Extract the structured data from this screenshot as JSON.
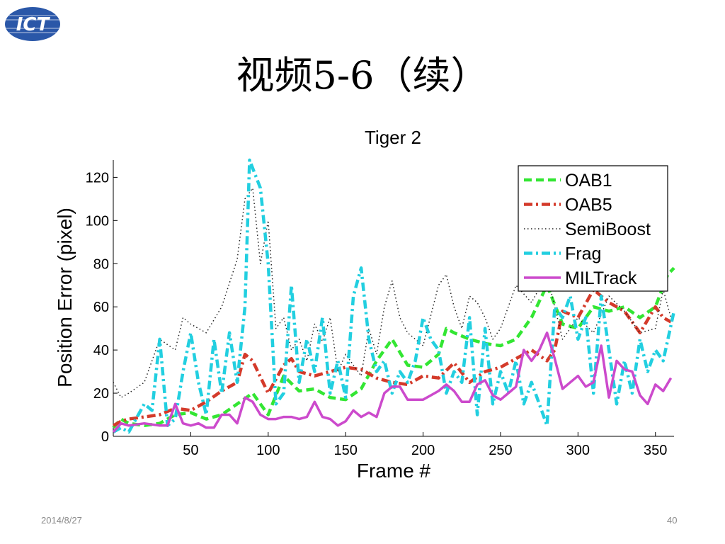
{
  "slide": {
    "title": "视频5-6（续）",
    "logo_text": "ICT",
    "footer_date": "2014/8/27",
    "page_number": "40"
  },
  "chart_data": {
    "type": "line",
    "title": "Tiger 2",
    "xlabel": "Frame #",
    "ylabel": "Position Error (pixel)",
    "xlim": [
      0,
      362
    ],
    "ylim": [
      0,
      128
    ],
    "xticks": [
      50,
      100,
      150,
      200,
      250,
      300,
      350
    ],
    "yticks": [
      0,
      20,
      40,
      60,
      80,
      100,
      120
    ],
    "grid": false,
    "legend_position": "top-right",
    "series": [
      {
        "name": "OAB1",
        "color": "#33e633",
        "style": "dashed",
        "x": [
          0,
          5,
          10,
          20,
          30,
          40,
          50,
          60,
          70,
          80,
          90,
          95,
          100,
          110,
          120,
          130,
          140,
          150,
          160,
          170,
          180,
          190,
          200,
          210,
          215,
          220,
          230,
          240,
          250,
          260,
          270,
          280,
          290,
          300,
          310,
          320,
          330,
          340,
          350,
          358,
          362
        ],
        "y": [
          4,
          8,
          6,
          5,
          6,
          10,
          11,
          8,
          10,
          15,
          20,
          15,
          10,
          28,
          21,
          22,
          18,
          17,
          22,
          35,
          45,
          33,
          32,
          38,
          50,
          48,
          45,
          43,
          42,
          45,
          55,
          70,
          52,
          50,
          60,
          58,
          60,
          55,
          60,
          75,
          78
        ]
      },
      {
        "name": "OAB5",
        "color": "#d43a2a",
        "style": "dashdot",
        "x": [
          0,
          5,
          10,
          20,
          30,
          40,
          50,
          60,
          70,
          80,
          85,
          90,
          100,
          110,
          115,
          120,
          130,
          140,
          150,
          160,
          170,
          180,
          190,
          200,
          210,
          220,
          230,
          240,
          250,
          260,
          270,
          280,
          285,
          290,
          300,
          310,
          320,
          330,
          340,
          350,
          355,
          360
        ],
        "y": [
          5,
          7,
          8,
          9,
          10,
          13,
          12,
          16,
          21,
          25,
          38,
          35,
          20,
          33,
          36,
          30,
          28,
          30,
          32,
          31,
          27,
          25,
          24,
          28,
          27,
          34,
          25,
          30,
          32,
          36,
          40,
          35,
          40,
          58,
          55,
          68,
          62,
          58,
          48,
          60,
          55,
          53
        ]
      },
      {
        "name": "SemiBoost",
        "color": "#222222",
        "style": "dotted",
        "x": [
          0,
          5,
          10,
          20,
          30,
          40,
          45,
          50,
          60,
          70,
          80,
          85,
          90,
          95,
          100,
          105,
          110,
          115,
          120,
          125,
          130,
          135,
          140,
          145,
          150,
          160,
          165,
          170,
          175,
          180,
          185,
          190,
          200,
          210,
          215,
          220,
          225,
          230,
          235,
          240,
          245,
          250,
          260,
          270,
          280,
          290,
          300,
          310,
          320,
          330,
          340,
          350,
          355,
          360
        ],
        "y": [
          25,
          18,
          20,
          25,
          45,
          40,
          55,
          52,
          48,
          60,
          82,
          110,
          115,
          80,
          100,
          50,
          55,
          40,
          45,
          35,
          52,
          44,
          55,
          30,
          38,
          28,
          50,
          38,
          60,
          72,
          55,
          48,
          42,
          70,
          75,
          60,
          50,
          65,
          62,
          55,
          45,
          50,
          70,
          62,
          75,
          45,
          55,
          48,
          65,
          58,
          48,
          50,
          68,
          55
        ]
      },
      {
        "name": "Frag",
        "color": "#22cfe0",
        "style": "dashdot",
        "x": [
          0,
          5,
          10,
          20,
          25,
          30,
          35,
          40,
          45,
          50,
          55,
          60,
          65,
          70,
          75,
          80,
          85,
          88,
          95,
          100,
          105,
          110,
          115,
          120,
          125,
          130,
          135,
          140,
          145,
          150,
          155,
          160,
          165,
          170,
          175,
          180,
          185,
          190,
          195,
          200,
          205,
          210,
          215,
          220,
          225,
          230,
          235,
          240,
          245,
          250,
          255,
          260,
          265,
          270,
          275,
          280,
          285,
          290,
          295,
          300,
          305,
          310,
          315,
          320,
          325,
          330,
          335,
          340,
          345,
          350,
          355,
          362
        ],
        "y": [
          2,
          4,
          2,
          15,
          12,
          45,
          5,
          8,
          30,
          48,
          25,
          10,
          45,
          20,
          48,
          25,
          60,
          128,
          115,
          80,
          15,
          20,
          70,
          25,
          45,
          30,
          55,
          20,
          35,
          18,
          65,
          78,
          45,
          30,
          35,
          20,
          30,
          25,
          35,
          55,
          45,
          40,
          20,
          30,
          25,
          55,
          10,
          50,
          15,
          30,
          20,
          35,
          15,
          25,
          15,
          5,
          60,
          55,
          65,
          45,
          55,
          20,
          65,
          40,
          15,
          35,
          20,
          45,
          30,
          40,
          35,
          58
        ]
      },
      {
        "name": "MILTrack",
        "color": "#cc4acc",
        "style": "solid",
        "x": [
          0,
          5,
          10,
          20,
          30,
          35,
          40,
          45,
          50,
          55,
          60,
          65,
          70,
          75,
          80,
          85,
          90,
          95,
          100,
          105,
          110,
          115,
          120,
          125,
          130,
          135,
          140,
          145,
          150,
          155,
          160,
          165,
          170,
          175,
          180,
          185,
          190,
          195,
          200,
          205,
          210,
          215,
          220,
          225,
          230,
          235,
          240,
          245,
          250,
          255,
          260,
          265,
          270,
          275,
          280,
          285,
          290,
          295,
          300,
          305,
          310,
          315,
          320,
          325,
          330,
          335,
          340,
          345,
          350,
          355,
          360
        ],
        "y": [
          2,
          6,
          5,
          6,
          5,
          5,
          15,
          6,
          5,
          6,
          4,
          4,
          10,
          10,
          6,
          18,
          16,
          10,
          8,
          8,
          9,
          9,
          8,
          9,
          16,
          9,
          8,
          5,
          7,
          12,
          9,
          11,
          9,
          20,
          23,
          23,
          17,
          17,
          17,
          19,
          21,
          24,
          21,
          16,
          16,
          24,
          26,
          19,
          17,
          20,
          23,
          40,
          35,
          40,
          48,
          36,
          22,
          25,
          28,
          23,
          25,
          42,
          18,
          35,
          31,
          30,
          19,
          15,
          24,
          21,
          27
        ]
      }
    ]
  }
}
